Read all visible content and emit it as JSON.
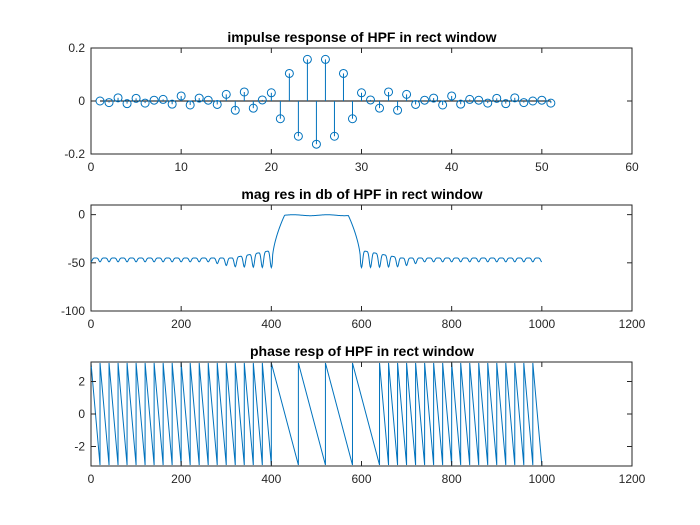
{
  "figure": {
    "background": "#ffffff",
    "axes_color": "#262626",
    "line_color": "#0072bd"
  },
  "chart_data": [
    {
      "type": "stem",
      "title": "impulse response of HPF in rect window",
      "xlabel": "",
      "ylabel": "",
      "xlim": [
        0,
        60
      ],
      "ylim": [
        -0.2,
        0.2
      ],
      "xticks": [
        0,
        10,
        20,
        30,
        40,
        50,
        60
      ],
      "yticks": [
        -0.2,
        0,
        0.2
      ],
      "xtick_labels": [
        "0",
        "10",
        "20",
        "30",
        "40",
        "50",
        "60"
      ],
      "ytick_labels": [
        "-0.2",
        "0",
        "0.2"
      ],
      "grid": false,
      "x": [
        1,
        2,
        3,
        4,
        5,
        6,
        7,
        8,
        9,
        10,
        11,
        12,
        13,
        14,
        15,
        16,
        17,
        18,
        19,
        20,
        21,
        22,
        23,
        24,
        25,
        26,
        27,
        28,
        29,
        30,
        31,
        32,
        33,
        34,
        35,
        36,
        37,
        38,
        39,
        40,
        41,
        42,
        43,
        44,
        45,
        46,
        47,
        48,
        49,
        50,
        51
      ],
      "y": [
        0.0,
        -0.006,
        0.012,
        -0.01,
        0.01,
        -0.008,
        0.003,
        0.006,
        -0.012,
        0.019,
        -0.015,
        0.011,
        0.003,
        -0.013,
        0.025,
        -0.035,
        0.034,
        -0.027,
        0.004,
        0.031,
        -0.067,
        0.104,
        -0.133,
        0.157,
        -0.163,
        0.157,
        -0.133,
        0.104,
        -0.067,
        0.031,
        0.004,
        -0.027,
        0.034,
        -0.035,
        0.025,
        -0.013,
        0.003,
        0.011,
        -0.015,
        0.019,
        -0.012,
        0.006,
        0.003,
        -0.008,
        0.01,
        -0.01,
        0.012,
        -0.006,
        0.0,
        0.003,
        -0.008
      ]
    },
    {
      "type": "line",
      "title": "mag res in db of HPF in rect window",
      "xlabel": "",
      "ylabel": "",
      "xlim": [
        0,
        1200
      ],
      "ylim": [
        -100,
        10
      ],
      "xticks": [
        0,
        200,
        400,
        600,
        800,
        1000,
        1200
      ],
      "yticks": [
        -100,
        -50,
        0
      ],
      "xtick_labels": [
        "0",
        "200",
        "400",
        "600",
        "800",
        "1000",
        "1200"
      ],
      "ytick_labels": [
        "-100",
        "-50",
        "0"
      ],
      "grid": false,
      "x_range": [
        0,
        1000
      ],
      "passband": [
        430,
        570
      ],
      "stopband_edges": [
        402,
        598
      ],
      "stopband_floor_db": -48,
      "ripple_period": 20
    },
    {
      "type": "line",
      "title": "phase resp of HPF in rect window",
      "xlabel": "",
      "ylabel": "",
      "xlim": [
        0,
        1200
      ],
      "ylim": [
        -3.2,
        3.2
      ],
      "xticks": [
        0,
        200,
        400,
        600,
        800,
        1000,
        1200
      ],
      "yticks": [
        -2,
        0,
        2
      ],
      "xtick_labels": [
        "0",
        "200",
        "400",
        "600",
        "800",
        "1000",
        "1200"
      ],
      "ytick_labels": [
        "-2",
        "0",
        "2"
      ],
      "grid": false,
      "x_range": [
        0,
        1000
      ],
      "amplitude": 3.14,
      "fast_period": 20,
      "slow_period": 60,
      "slow_region": [
        400,
        600
      ]
    }
  ]
}
